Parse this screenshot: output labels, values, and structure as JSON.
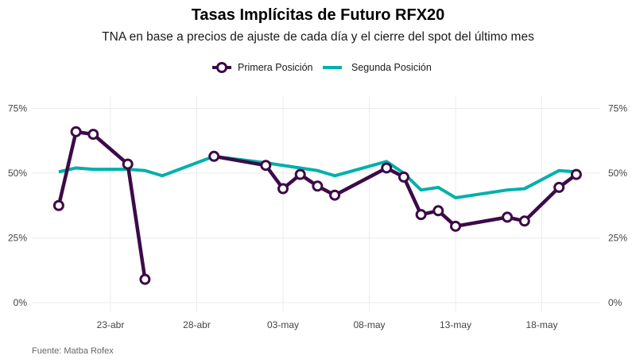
{
  "title": "Tasas Implícitas de Futuro RFX20",
  "subtitle": "TNA en base a precios de ajuste de cada día y el cierre del spot del último mes",
  "caption": "Fuente: Matba Rofex",
  "chart_data": {
    "type": "line",
    "title": "Tasas Implícitas de Futuro RFX20",
    "subtitle": "TNA en base a precios de ajuste de cada día y el cierre del spot del último mes",
    "xlabel": "",
    "ylabel": "",
    "ylim": [
      0,
      75
    ],
    "y_ticks": [
      0,
      25,
      50,
      75
    ],
    "y_tick_labels": [
      "0%",
      "25%",
      "50%",
      "75%"
    ],
    "secondary_y_axis": true,
    "x_ticks": [
      "2020-04-23",
      "2020-04-28",
      "2020-05-03",
      "2020-05-08",
      "2020-05-13",
      "2020-05-18"
    ],
    "x_tick_labels": [
      "23-abr",
      "28-abr",
      "03-may",
      "08-may",
      "13-may",
      "18-may"
    ],
    "grid": true,
    "legend_position": "top",
    "series": [
      {
        "name": "Primera Posición",
        "color": "#3c0b47",
        "markers": true,
        "segments": [
          {
            "x": [
              "2020-04-20",
              "2020-04-21",
              "2020-04-22",
              "2020-04-24"
            ],
            "y": [
              37.5,
              66,
              65,
              53.5
            ]
          },
          {
            "x": [
              "2020-04-24",
              "2020-04-25"
            ],
            "y": [
              53.5,
              9
            ]
          },
          {
            "x": [
              "2020-04-29",
              "2020-05-02",
              "2020-05-03",
              "2020-05-04",
              "2020-05-05",
              "2020-05-06",
              "2020-05-09",
              "2020-05-10",
              "2020-05-11",
              "2020-05-12",
              "2020-05-13",
              "2020-05-16",
              "2020-05-17",
              "2020-05-19",
              "2020-05-20"
            ],
            "y": [
              56.5,
              53,
              44,
              49.5,
              45,
              41.5,
              52,
              48.5,
              34,
              35.5,
              29.5,
              33,
              31.5,
              44.5,
              49.5
            ]
          }
        ]
      },
      {
        "name": "Segunda Posición",
        "color": "#00b0ab",
        "markers": false,
        "x": [
          "2020-04-20",
          "2020-04-21",
          "2020-04-22",
          "2020-04-24",
          "2020-04-25",
          "2020-04-26",
          "2020-04-29",
          "2020-05-02",
          "2020-05-03",
          "2020-05-04",
          "2020-05-05",
          "2020-05-06",
          "2020-05-09",
          "2020-05-10",
          "2020-05-11",
          "2020-05-12",
          "2020-05-13",
          "2020-05-16",
          "2020-05-17",
          "2020-05-19",
          "2020-05-20"
        ],
        "y": [
          50.5,
          52,
          51.5,
          51.5,
          51,
          49,
          56.5,
          54,
          53,
          52,
          51,
          49,
          54.5,
          50,
          43.5,
          44.5,
          40.5,
          43.5,
          44,
          51,
          50.5
        ]
      }
    ]
  }
}
